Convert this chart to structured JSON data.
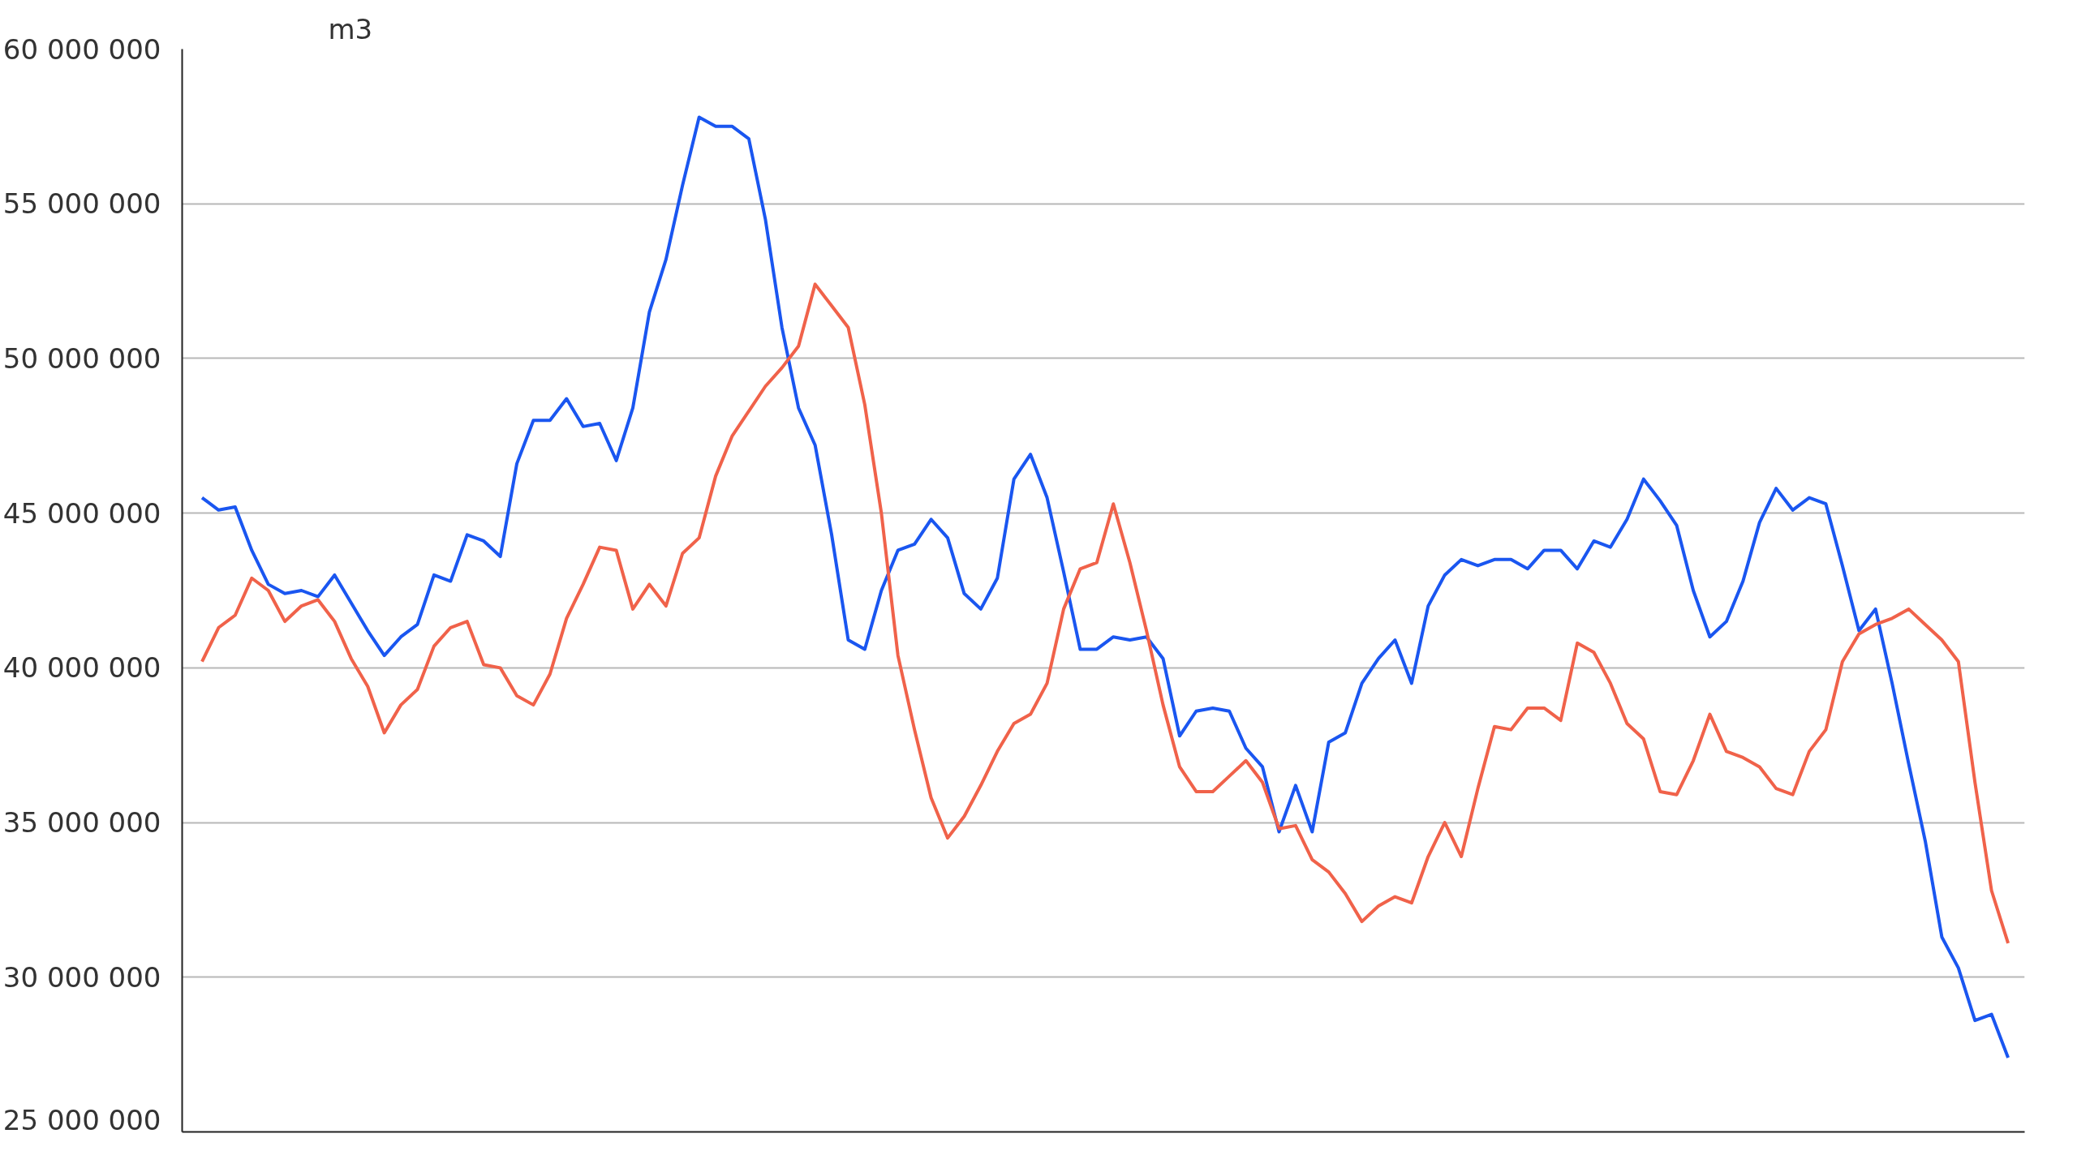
{
  "chart_data": {
    "type": "line",
    "ylabel": "m3",
    "grid": "y",
    "marker": "none",
    "line_style": "solid",
    "tick_labels": "y",
    "categories": [
      null,
      null,
      null,
      null,
      null,
      null,
      null,
      null,
      null,
      null,
      null,
      null,
      null,
      null,
      null,
      null,
      null,
      null,
      null,
      null,
      null,
      null,
      null,
      null,
      null,
      null,
      null,
      null,
      null,
      null,
      null,
      null,
      null,
      null,
      null,
      null,
      null,
      null,
      null,
      null,
      null,
      null,
      null,
      null,
      null,
      null,
      null,
      null,
      null,
      null,
      null,
      null,
      null,
      null,
      null,
      null,
      null,
      null,
      null,
      null,
      null,
      null,
      null,
      null,
      null,
      null,
      null,
      null,
      null,
      null,
      null,
      null,
      null,
      null,
      null,
      null,
      null,
      null,
      null,
      null,
      null,
      null,
      null,
      null,
      null,
      null,
      null,
      null,
      null,
      null,
      null,
      null,
      null,
      null,
      null,
      null,
      null,
      null,
      null,
      null,
      null,
      null,
      null,
      null,
      null,
      null,
      null,
      null,
      null,
      null
    ],
    "ylim": [
      25000000,
      60000000
    ],
    "yticks": [
      {
        "value": 25000000,
        "label": "25 000 000"
      },
      {
        "value": 30000000,
        "label": "30 000 000"
      },
      {
        "value": 35000000,
        "label": "35 000 000"
      },
      {
        "value": 40000000,
        "label": "40 000 000"
      },
      {
        "value": 45000000,
        "label": "45 000 000"
      },
      {
        "value": 50000000,
        "label": "50 000 000"
      },
      {
        "value": 55000000,
        "label": "55 000 000"
      },
      {
        "value": 60000000,
        "label": "60 000 000"
      }
    ],
    "series": [
      {
        "color": "#1a56f0",
        "values": [
          45500000,
          45100000,
          45200000,
          43800000,
          42700000,
          42400000,
          42500000,
          42300000,
          43000000,
          42100000,
          41200000,
          40400000,
          41000000,
          41400000,
          43000000,
          42800000,
          44300000,
          44100000,
          43600000,
          46600000,
          48000000,
          48000000,
          48700000,
          47800000,
          47900000,
          46700000,
          48400000,
          51500000,
          53200000,
          55600000,
          57800000,
          57500000,
          57500000,
          57100000,
          54500000,
          51000000,
          48400000,
          47200000,
          44300000,
          40900000,
          40600000,
          42500000,
          43800000,
          44000000,
          44800000,
          44200000,
          42400000,
          41900000,
          42900000,
          46100000,
          46900000,
          45500000,
          43100000,
          40600000,
          40600000,
          41000000,
          40900000,
          41000000,
          40300000,
          37800000,
          38600000,
          38700000,
          38600000,
          37400000,
          36800000,
          34700000,
          36200000,
          34700000,
          37600000,
          37900000,
          39500000,
          40300000,
          40900000,
          39500000,
          42000000,
          43000000,
          43500000,
          43300000,
          43500000,
          43500000,
          43200000,
          43800000,
          43800000,
          43200000,
          44100000,
          43900000,
          44800000,
          46100000,
          45400000,
          44600000,
          42500000,
          41000000,
          41500000,
          42800000,
          44700000,
          45800000,
          45100000,
          45500000,
          45300000,
          43300000,
          41200000,
          41900000,
          39500000,
          36900000,
          34400000,
          31300000,
          30300000,
          28600000,
          28800000,
          27400000
        ]
      },
      {
        "color": "#f0624a",
        "values": [
          40200000,
          41300000,
          41700000,
          42900000,
          42500000,
          41500000,
          42000000,
          42200000,
          41500000,
          40300000,
          39400000,
          37900000,
          38800000,
          39300000,
          40700000,
          41300000,
          41500000,
          40100000,
          40000000,
          39100000,
          38800000,
          39800000,
          41600000,
          42700000,
          43900000,
          43800000,
          41900000,
          42700000,
          42000000,
          43700000,
          44200000,
          46200000,
          47500000,
          48300000,
          49100000,
          49700000,
          50400000,
          52400000,
          51700000,
          51000000,
          48500000,
          45000000,
          40400000,
          38000000,
          35800000,
          34500000,
          35200000,
          36200000,
          37300000,
          38200000,
          38500000,
          39500000,
          41900000,
          43200000,
          43400000,
          45300000,
          43400000,
          41200000,
          38800000,
          36800000,
          36000000,
          36000000,
          36500000,
          37000000,
          36300000,
          34800000,
          34900000,
          33800000,
          33400000,
          32700000,
          31800000,
          32300000,
          32600000,
          32400000,
          33900000,
          35000000,
          33900000,
          36100000,
          38100000,
          38000000,
          38700000,
          38700000,
          38300000,
          40800000,
          40500000,
          39500000,
          38200000,
          37700000,
          36000000,
          35900000,
          37000000,
          38500000,
          37300000,
          37100000,
          36800000,
          36100000,
          35900000,
          37300000,
          38000000,
          40200000,
          41100000,
          41400000,
          41600000,
          41900000,
          41400000,
          40900000,
          40200000,
          36300000,
          32800000,
          31100000
        ]
      }
    ]
  }
}
